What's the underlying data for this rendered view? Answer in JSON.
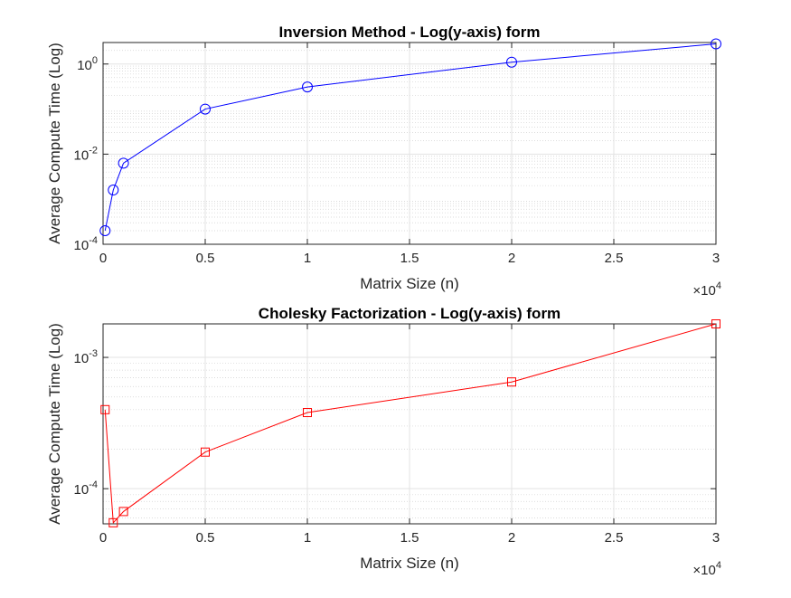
{
  "chart_data": [
    {
      "type": "line",
      "title": "Inversion Method - Log(y-axis) form",
      "xlabel": "Matrix Size (n)",
      "ylabel": "Average Compute Time (Log)",
      "y_scale": "log",
      "x_multiplier": "×10",
      "x_multiplier_exp": "4",
      "xlim": [
        0,
        30000
      ],
      "ylim": [
        0.0001,
        3
      ],
      "x_tick_labels": [
        "0",
        "0.5",
        "1",
        "1.5",
        "2",
        "2.5",
        "3"
      ],
      "y_tick_labels": [
        {
          "base": "10",
          "exp": "-4"
        },
        {
          "base": "10",
          "exp": "-2"
        },
        {
          "base": "10",
          "exp": "0"
        }
      ],
      "grid": true,
      "series": [
        {
          "color": "#0000ff",
          "marker": "circle",
          "x": [
            100,
            500,
            1000,
            5000,
            10000,
            20000,
            30000
          ],
          "y": [
            0.0002,
            0.0016,
            0.0063,
            0.1,
            0.31,
            1.1,
            2.8
          ]
        }
      ]
    },
    {
      "type": "line",
      "title": "Cholesky Factorization - Log(y-axis) form",
      "xlabel": "Matrix Size (n)",
      "ylabel": "Average Compute Time (Log)",
      "y_scale": "log",
      "x_multiplier": "×10",
      "x_multiplier_exp": "4",
      "xlim": [
        0,
        30000
      ],
      "ylim": [
        5.4e-05,
        0.0018
      ],
      "x_tick_labels": [
        "0",
        "0.5",
        "1",
        "1.5",
        "2",
        "2.5",
        "3"
      ],
      "y_tick_labels": [
        {
          "base": "10",
          "exp": "-4"
        },
        {
          "base": "10",
          "exp": "-3"
        }
      ],
      "grid": true,
      "series": [
        {
          "color": "#ff0000",
          "marker": "square",
          "x": [
            100,
            500,
            1000,
            5000,
            10000,
            20000,
            30000
          ],
          "y": [
            0.0004,
            5.5e-05,
            6.7e-05,
            0.00019,
            0.00038,
            0.00065,
            0.0018
          ]
        }
      ]
    }
  ]
}
